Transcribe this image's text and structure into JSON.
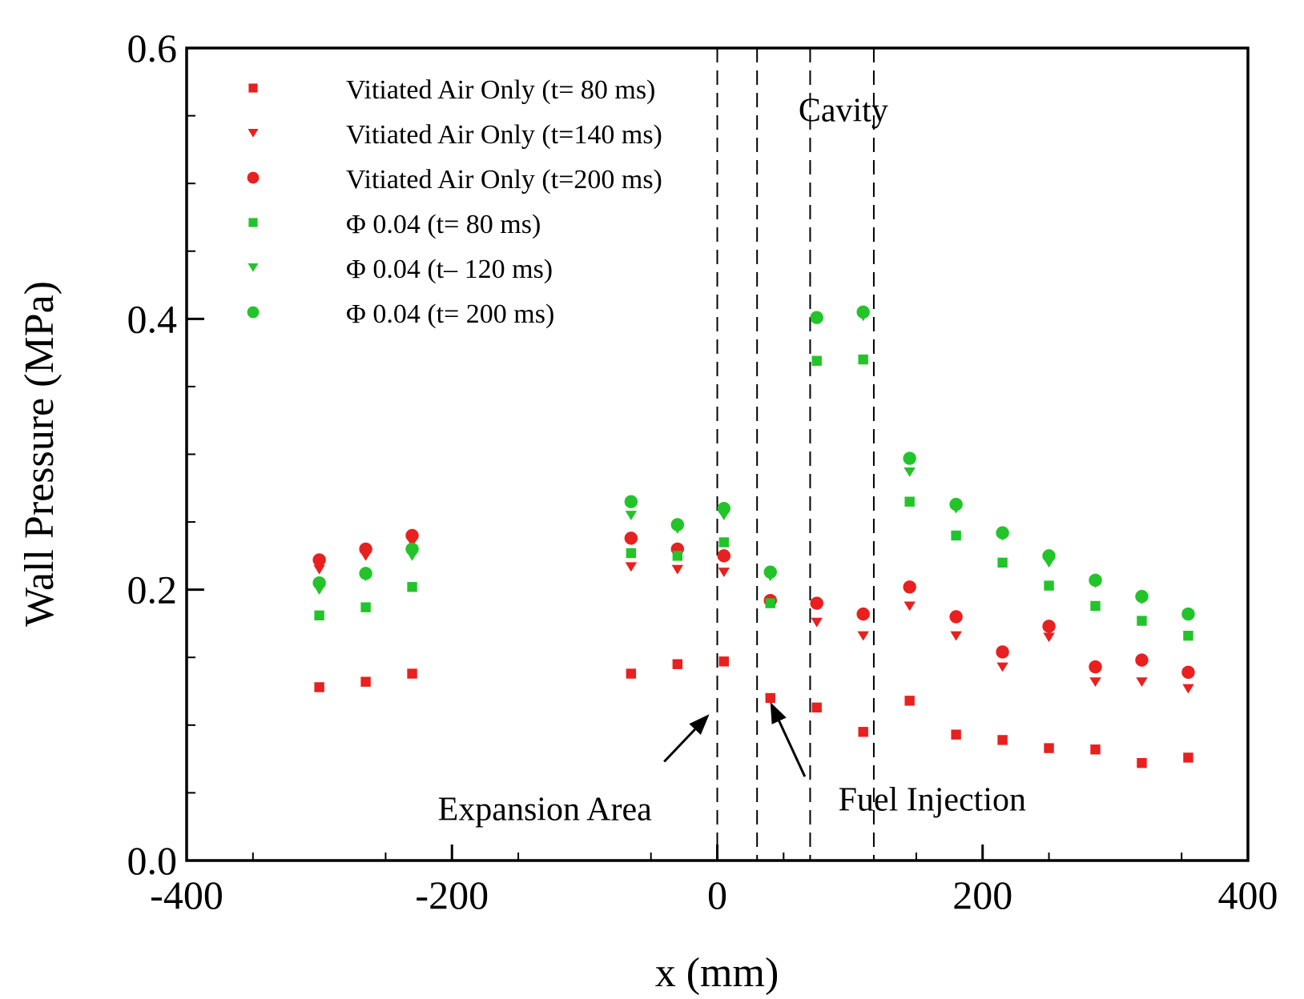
{
  "chart_data": {
    "type": "scatter",
    "title": "",
    "xlabel": "x (mm)",
    "ylabel": "Wall Pressure (MPa)",
    "xlim": [
      -400,
      400
    ],
    "ylim": [
      0.0,
      0.6
    ],
    "x_ticks": [
      -400,
      -200,
      0,
      200,
      400
    ],
    "x_tick_labels": [
      "-400",
      "-200",
      "0",
      "200",
      "400"
    ],
    "y_ticks": [
      0.0,
      0.2,
      0.4,
      0.6
    ],
    "y_tick_labels": [
      "0.0",
      "0.2",
      "0.4",
      "0.6"
    ],
    "grid": false,
    "legend_position": "top-left",
    "x": [
      -300,
      -265,
      -230,
      -65,
      -30,
      5,
      40,
      75,
      110,
      145,
      180,
      215,
      250,
      285,
      320,
      355
    ],
    "series": [
      {
        "name": "Vitiated Air Only (t= 80 ms)",
        "marker": "square",
        "color": "#e8201f",
        "values": [
          0.128,
          0.132,
          0.138,
          0.138,
          0.145,
          0.147,
          0.12,
          0.113,
          0.095,
          0.118,
          0.093,
          0.089,
          0.083,
          0.082,
          0.072,
          0.076
        ]
      },
      {
        "name": "Vitiated Air Only (t=140 ms)",
        "marker": "triangle-down",
        "color": "#e8201f",
        "values": [
          0.215,
          0.225,
          0.235,
          0.217,
          0.215,
          0.213,
          0.192,
          0.176,
          0.166,
          0.188,
          0.166,
          0.143,
          0.165,
          0.132,
          0.132,
          0.127
        ]
      },
      {
        "name": "Vitiated Air Only (t=200 ms)",
        "marker": "circle",
        "color": "#e8201f",
        "values": [
          0.222,
          0.23,
          0.24,
          0.238,
          0.23,
          0.225,
          0.192,
          0.19,
          0.182,
          0.202,
          0.18,
          0.154,
          0.173,
          0.143,
          0.148,
          0.139
        ]
      },
      {
        "name": "Φ 0.04 (t= 80 ms)",
        "marker": "square",
        "color": "#22c42a",
        "values": [
          0.181,
          0.187,
          0.202,
          0.227,
          0.225,
          0.235,
          0.19,
          0.369,
          0.37,
          0.265,
          0.24,
          0.22,
          0.203,
          0.188,
          0.177,
          0.166
        ]
      },
      {
        "name": "Φ 0.04 (t– 120 ms)",
        "marker": "triangle-down",
        "color": "#22c42a",
        "values": [
          0.2,
          0.21,
          0.225,
          0.255,
          0.245,
          0.255,
          0.21,
          0.4,
          0.402,
          0.287,
          0.26,
          0.24,
          0.22,
          0.205,
          0.193,
          0.182
        ]
      },
      {
        "name": "Φ 0.04 (t= 200 ms)",
        "marker": "circle",
        "color": "#22c42a",
        "values": [
          0.205,
          0.212,
          0.23,
          0.265,
          0.248,
          0.26,
          0.213,
          0.401,
          0.405,
          0.297,
          0.263,
          0.242,
          0.225,
          0.207,
          0.195,
          0.182
        ]
      }
    ],
    "reference_lines": [
      {
        "name": "expansion-start",
        "x": 0
      },
      {
        "name": "expansion-end",
        "x": 30
      },
      {
        "name": "cavity-start",
        "x": 70
      },
      {
        "name": "cavity-end",
        "x": 118
      }
    ],
    "annotations": {
      "cavity": "Cavity",
      "expansion": "Expansion Area",
      "fuel_injection": "Fuel Injection"
    },
    "annotation_anchors": {
      "cavity": {
        "x": 95,
        "y": 0.546
      },
      "expansion": {
        "x": -130,
        "y": 0.03
      },
      "fuel_injection": {
        "x": 162,
        "y": 0.037
      }
    },
    "arrows": [
      {
        "name": "expansion-arrow",
        "from": {
          "x": -40,
          "y": 0.073
        },
        "to": {
          "x": -6,
          "y": 0.108
        }
      },
      {
        "name": "fuel-injection-arrow",
        "from": {
          "x": 66,
          "y": 0.062
        },
        "to": {
          "x": 40,
          "y": 0.117
        }
      }
    ]
  }
}
